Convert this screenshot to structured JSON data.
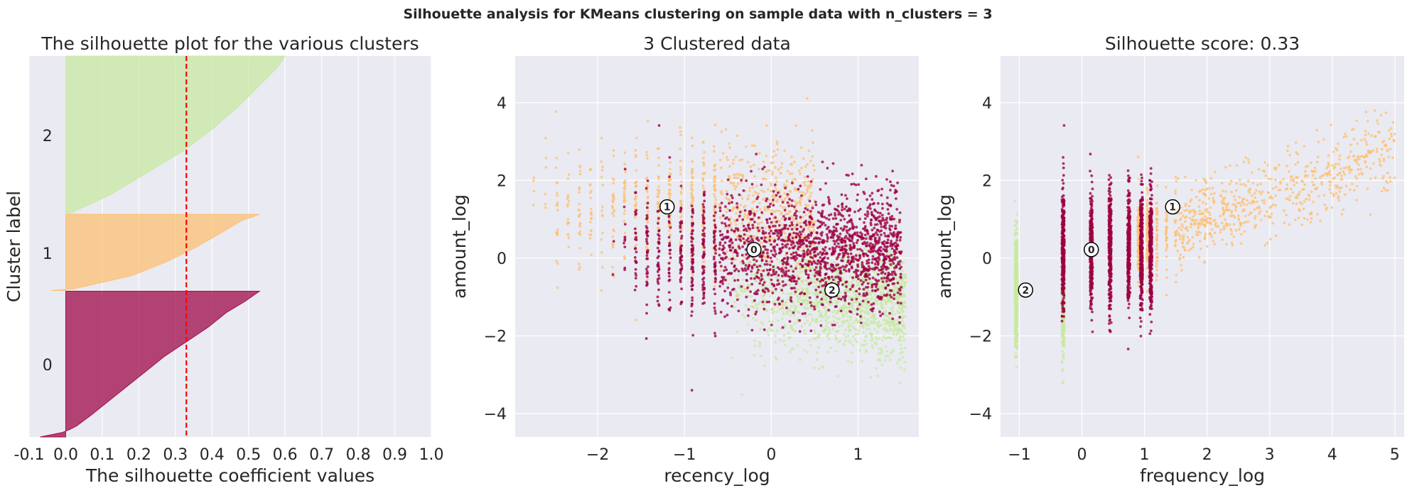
{
  "figure": {
    "suptitle": "Silhouette analysis for KMeans clustering on sample data with n_clusters = 3",
    "background": "#eaeaf2",
    "grid": true,
    "grid_color": "#ffffff"
  },
  "cluster_colors": [
    "#9e0142",
    "#fdbf6f",
    "#c7e9a0"
  ],
  "center_marker": {
    "face": "#ffffff",
    "edge": "#000000"
  },
  "chart_data": [
    {
      "type": "area",
      "title": "The silhouette plot for the various clusters",
      "xlabel": "The silhouette coefficient values",
      "ylabel": "Cluster label",
      "xlim": [
        -0.1,
        1.0
      ],
      "xticks": [
        "-0.1",
        "0.0",
        "0.1",
        "0.2",
        "0.3",
        "0.4",
        "0.5",
        "0.6",
        "0.7",
        "0.8",
        "0.9",
        "1.0"
      ],
      "ylim": [
        0,
        5200
      ],
      "average_silhouette": 0.33,
      "average_line_color": "#ff0000",
      "series": [
        {
          "label": "0",
          "y_lower": 0,
          "y_upper": 1990,
          "profile": [
            [
              0,
              -0.07
            ],
            [
              60,
              -0.01
            ],
            [
              100,
              0.01
            ],
            [
              150,
              0.03
            ],
            [
              300,
              0.07
            ],
            [
              500,
              0.12
            ],
            [
              700,
              0.17
            ],
            [
              900,
              0.22
            ],
            [
              1100,
              0.27
            ],
            [
              1300,
              0.33
            ],
            [
              1500,
              0.39
            ],
            [
              1700,
              0.44
            ],
            [
              1850,
              0.49
            ],
            [
              1990,
              0.53
            ]
          ]
        },
        {
          "label": "1",
          "y_lower": 2000,
          "y_upper": 3040,
          "profile": [
            [
              2000,
              -0.04
            ],
            [
              2020,
              0.02
            ],
            [
              2200,
              0.18
            ],
            [
              2400,
              0.28
            ],
            [
              2600,
              0.36
            ],
            [
              2800,
              0.43
            ],
            [
              2950,
              0.48
            ],
            [
              3040,
              0.53
            ]
          ]
        },
        {
          "label": "2",
          "y_lower": 3050,
          "y_upper": 5200,
          "profile": [
            [
              3050,
              0.01
            ],
            [
              3300,
              0.12
            ],
            [
              3600,
              0.22
            ],
            [
              3900,
              0.32
            ],
            [
              4200,
              0.4
            ],
            [
              4500,
              0.47
            ],
            [
              4800,
              0.53
            ],
            [
              5050,
              0.58
            ],
            [
              5200,
              0.6
            ]
          ]
        }
      ]
    },
    {
      "type": "scatter",
      "title": "3 Clustered data",
      "xlabel": "recency_log",
      "ylabel": "amount_log",
      "xlim": [
        -2.95,
        1.7
      ],
      "ylim": [
        -4.6,
        5.2
      ],
      "xticks": [
        -2,
        -1,
        0,
        1
      ],
      "yticks": [
        -4,
        -2,
        0,
        2,
        4
      ],
      "centers": [
        {
          "label": "0",
          "x": -0.2,
          "y": 0.22
        },
        {
          "label": "1",
          "x": -1.2,
          "y": 1.32
        },
        {
          "label": "2",
          "x": 0.7,
          "y": -0.82
        }
      ],
      "clusters": [
        {
          "label": "0",
          "x_range": [
            -1.8,
            1.5
          ],
          "y_mean": 0.2,
          "y_spread": 0.75,
          "approx_points": 1900
        },
        {
          "label": "1",
          "x_range": [
            -2.75,
            0.5
          ],
          "y_mean": 1.3,
          "y_spread": 0.85,
          "approx_points": 1000
        },
        {
          "label": "2",
          "x_range": [
            -0.5,
            1.55
          ],
          "y_mean": -0.85,
          "y_spread": 0.7,
          "approx_points": 1400
        }
      ]
    },
    {
      "type": "scatter",
      "title": "Silhouette score: 0.33",
      "xlabel": "frequency_log",
      "ylabel": "amount_log",
      "xlim": [
        -1.3,
        5.15
      ],
      "ylim": [
        -4.6,
        5.2
      ],
      "xticks": [
        -1,
        0,
        1,
        2,
        3,
        4,
        5
      ],
      "yticks": [
        -4,
        -2,
        0,
        2,
        4
      ],
      "frequency_levels": [
        -1.05,
        -0.3,
        0.15,
        0.45,
        0.75,
        0.95,
        1.1,
        1.25,
        1.4
      ],
      "centers": [
        {
          "label": "0",
          "x": 0.15,
          "y": 0.22
        },
        {
          "label": "1",
          "x": 1.45,
          "y": 1.32
        },
        {
          "label": "2",
          "x": -0.9,
          "y": -0.82
        }
      ],
      "clusters": [
        {
          "label": "0",
          "x_values": [
            -0.3,
            0.15,
            0.45,
            0.75,
            0.95,
            1.1
          ],
          "y_mean": 0.2,
          "y_spread": 0.75,
          "approx_points": 1900
        },
        {
          "label": "1",
          "x_range": [
            0.7,
            5.0
          ],
          "y_mean": 1.3,
          "y_spread": 0.85,
          "approx_points": 1000
        },
        {
          "label": "2",
          "x_values": [
            -1.05,
            -0.3
          ],
          "y_mean": -0.85,
          "y_spread": 0.7,
          "approx_points": 1400
        }
      ]
    }
  ]
}
